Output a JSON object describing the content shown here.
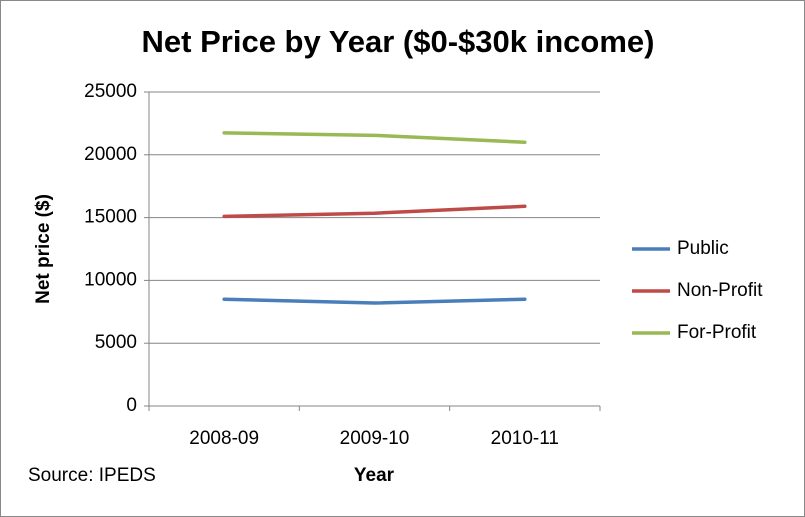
{
  "chart_data": {
    "type": "line",
    "title": "Net Price by Year ($0-$30k income)",
    "x_label": "Year",
    "y_label": "Net price ($)",
    "annotation": "Source: IPEDS",
    "categories": [
      "2008-09",
      "2009-10",
      "2010-11"
    ],
    "series": [
      {
        "name": "Public",
        "color": "#4a7ebb",
        "values": [
          8500,
          8200,
          8500
        ]
      },
      {
        "name": "Non-Profit",
        "color": "#be4b48",
        "values": [
          15100,
          15350,
          15900
        ]
      },
      {
        "name": "For-Profit",
        "color": "#98b954",
        "values": [
          21750,
          21550,
          21000
        ]
      }
    ],
    "ylim": [
      0,
      25000
    ],
    "yticks": [
      0,
      5000,
      10000,
      15000,
      20000,
      25000
    ],
    "grid": true,
    "legend": "right"
  }
}
